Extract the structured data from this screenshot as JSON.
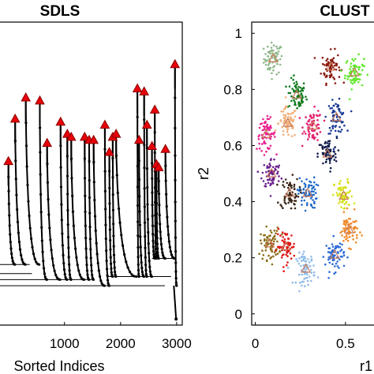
{
  "chart_data": [
    {
      "type": "line",
      "title": "SDLS",
      "xlabel": "Sorted Indices",
      "ylabel": "",
      "xlim": [
        -150,
        3100
      ],
      "ylim": [
        0,
        1
      ],
      "xticks": [
        1000,
        2000,
        3000
      ],
      "grid": false,
      "legend": "none",
      "colors": {
        "line": "#000000",
        "marker": "#000000",
        "peak_fill": "#e8000b",
        "peak_edge": "#8b0000"
      },
      "peaks": [
        {
          "x": 0,
          "y": 0.54
        },
        {
          "x": 120,
          "y": 0.68
        },
        {
          "x": 310,
          "y": 0.75
        },
        {
          "x": 560,
          "y": 0.74
        },
        {
          "x": 690,
          "y": 0.6
        },
        {
          "x": 930,
          "y": 0.67
        },
        {
          "x": 1050,
          "y": 0.63
        },
        {
          "x": 1120,
          "y": 0.62
        },
        {
          "x": 1360,
          "y": 0.62
        },
        {
          "x": 1440,
          "y": 0.61
        },
        {
          "x": 1520,
          "y": 0.61
        },
        {
          "x": 1720,
          "y": 0.66
        },
        {
          "x": 1800,
          "y": 0.57
        },
        {
          "x": 1860,
          "y": 0.62
        },
        {
          "x": 1920,
          "y": 0.63
        },
        {
          "x": 2300,
          "y": 0.78
        },
        {
          "x": 2330,
          "y": 0.61
        },
        {
          "x": 2420,
          "y": 0.77
        },
        {
          "x": 2470,
          "y": 0.66
        },
        {
          "x": 2560,
          "y": 0.59
        },
        {
          "x": 2610,
          "y": 0.71
        },
        {
          "x": 2640,
          "y": 0.53
        },
        {
          "x": 2680,
          "y": 0.52
        },
        {
          "x": 2800,
          "y": 0.58
        },
        {
          "x": 2970,
          "y": 0.86
        }
      ],
      "baselines": [
        {
          "x1": -150,
          "x2": 2790,
          "y": 0.13
        },
        {
          "x1": -150,
          "x2": 1500,
          "y": 0.15
        },
        {
          "x1": -150,
          "x2": 420,
          "y": 0.17
        },
        {
          "x1": -150,
          "x2": 380,
          "y": 0.2
        },
        {
          "x1": 1760,
          "x2": 2900,
          "y": 0.16
        },
        {
          "x1": 2560,
          "x2": 2960,
          "y": 0.22
        }
      ],
      "valley": {
        "x": 2990,
        "y": 0.02
      }
    },
    {
      "type": "scatter",
      "title": "CLUST",
      "xlabel": "r1",
      "ylabel": "r2",
      "xlim": [
        -0.02,
        0.68
      ],
      "ylim": [
        -0.04,
        1.04
      ],
      "xticks": [
        0,
        0.5
      ],
      "xtick_labels": [
        "0",
        "0.5"
      ],
      "yticks": [
        0,
        0.2,
        0.4,
        0.6,
        0.8,
        1
      ],
      "ytick_labels": [
        "0",
        "0.2",
        "0.4",
        "0.6",
        "0.8",
        "1"
      ],
      "grid": false,
      "legend": "none",
      "clusters": [
        {
          "cx": 0.1,
          "cy": 0.91,
          "color": "#8fb88a"
        },
        {
          "cx": 0.23,
          "cy": 0.78,
          "color": "#0f7a1c"
        },
        {
          "cx": 0.42,
          "cy": 0.88,
          "color": "#8b1a10"
        },
        {
          "cx": 0.55,
          "cy": 0.86,
          "color": "#5ee82a"
        },
        {
          "cx": 0.06,
          "cy": 0.64,
          "color": "#e8208f"
        },
        {
          "cx": 0.18,
          "cy": 0.68,
          "color": "#f2b07a"
        },
        {
          "cx": 0.32,
          "cy": 0.67,
          "color": "#e3206e"
        },
        {
          "cx": 0.45,
          "cy": 0.7,
          "color": "#1a3a96"
        },
        {
          "cx": 0.4,
          "cy": 0.57,
          "color": "#101c4a"
        },
        {
          "cx": 0.09,
          "cy": 0.5,
          "color": "#6b1f8c"
        },
        {
          "cx": 0.19,
          "cy": 0.43,
          "color": "#3a2516"
        },
        {
          "cx": 0.29,
          "cy": 0.43,
          "color": "#1d68c7"
        },
        {
          "cx": 0.49,
          "cy": 0.42,
          "color": "#d8e020"
        },
        {
          "cx": 0.08,
          "cy": 0.25,
          "color": "#8a6a14"
        },
        {
          "cx": 0.17,
          "cy": 0.24,
          "color": "#e01818"
        },
        {
          "cx": 0.28,
          "cy": 0.16,
          "color": "#8fbce8"
        },
        {
          "cx": 0.44,
          "cy": 0.21,
          "color": "#2a6ad8"
        },
        {
          "cx": 0.52,
          "cy": 0.3,
          "color": "#f08a2a"
        }
      ]
    }
  ]
}
